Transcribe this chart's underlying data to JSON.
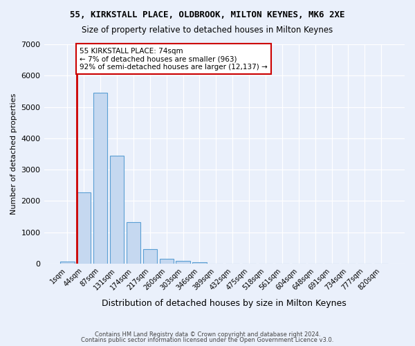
{
  "title1": "55, KIRKSTALL PLACE, OLDBROOK, MILTON KEYNES, MK6 2XE",
  "title2": "Size of property relative to detached houses in Milton Keynes",
  "xlabel": "Distribution of detached houses by size in Milton Keynes",
  "ylabel": "Number of detached properties",
  "bar_color": "#c5d8f0",
  "bar_edge_color": "#5a9fd4",
  "bin_labels": [
    "1sqm",
    "44sqm",
    "87sqm",
    "131sqm",
    "174sqm",
    "217sqm",
    "260sqm",
    "303sqm",
    "346sqm",
    "389sqm",
    "432sqm",
    "475sqm",
    "518sqm",
    "561sqm",
    "604sqm",
    "648sqm",
    "691sqm",
    "734sqm",
    "777sqm",
    "820sqm"
  ],
  "bar_heights": [
    75,
    2280,
    5460,
    3450,
    1320,
    460,
    160,
    90,
    50,
    0,
    0,
    0,
    0,
    0,
    0,
    0,
    0,
    0,
    0,
    0
  ],
  "ylim": [
    0,
    7000
  ],
  "yticks": [
    0,
    1000,
    2000,
    3000,
    4000,
    5000,
    6000,
    7000
  ],
  "property_bin_index": 1,
  "annotation_line1": "55 KIRKSTALL PLACE: 74sqm",
  "annotation_line2": "← 7% of detached houses are smaller (963)",
  "annotation_line3": "92% of semi-detached houses are larger (12,137) →",
  "annotation_box_color": "#ffffff",
  "annotation_box_edge": "#cc0000",
  "vline_color": "#cc0000",
  "footer1": "Contains HM Land Registry data © Crown copyright and database right 2024.",
  "footer2": "Contains public sector information licensed under the Open Government Licence v3.0.",
  "background_color": "#eaf0fb",
  "grid_color": "#ffffff"
}
